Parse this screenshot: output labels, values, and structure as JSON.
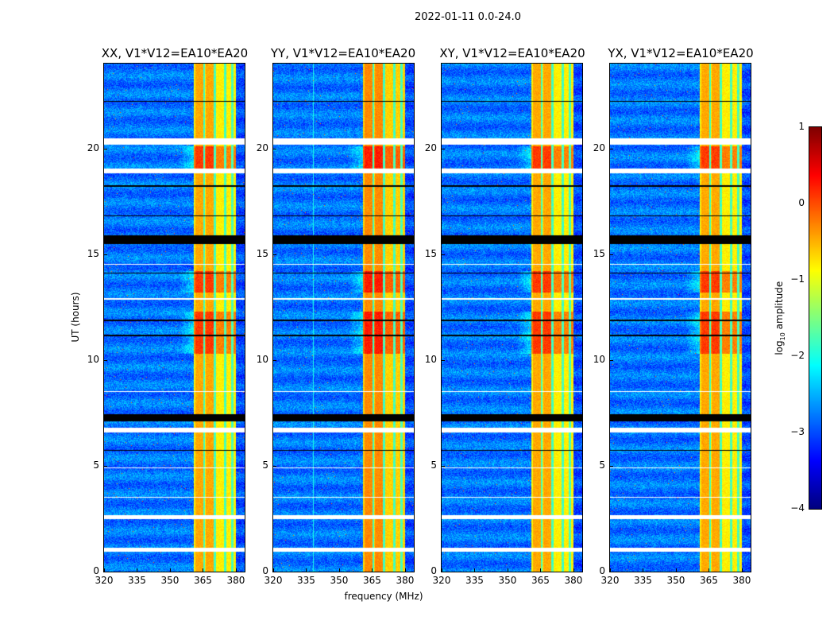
{
  "chart_data": {
    "type": "heatmap",
    "title": "2022-01-11 0.0-24.0",
    "xlabel": "frequency (MHz)",
    "ylabel": "UT (hours)",
    "xlim": [
      320,
      384
    ],
    "ylim": [
      0,
      24
    ],
    "xticks": [
      320,
      335,
      350,
      365,
      380
    ],
    "yticks": [
      0,
      5,
      10,
      15,
      20
    ],
    "panels": [
      {
        "title": "XX, V1*V12=EA10*EA20"
      },
      {
        "title": "YY, V1*V12=EA10*EA20"
      },
      {
        "title": "XY, V1*V12=EA10*EA20"
      },
      {
        "title": "YX, V1*V12=EA10*EA20"
      }
    ],
    "colormap": "jet",
    "colorbar": {
      "label": "log",
      "label_sub": "10",
      "label_tail": " amplitude",
      "range": [
        -4,
        1
      ],
      "ticks": [
        1,
        0,
        -1,
        -2,
        -3,
        -4
      ]
    },
    "features": {
      "band_mhz": [
        360.5,
        380
      ],
      "band_level": -0.8,
      "background_level": -2.8,
      "band_gap_lines_mhz": [
        365.3,
        370.3,
        375,
        378.3
      ],
      "bright_ut_ranges": [
        [
          10.3,
          12.3
        ],
        [
          19.0,
          20.1
        ],
        [
          13.2,
          14.2
        ]
      ],
      "flagged_ut_ranges": [
        [
          20.2,
          20.5
        ],
        [
          18.85,
          19.05
        ],
        [
          6.6,
          6.8
        ],
        [
          2.5,
          2.7
        ],
        [
          0.95,
          1.15
        ],
        [
          12.85,
          12.95
        ],
        [
          3.5,
          3.55
        ],
        [
          4.9,
          4.95
        ],
        [
          8.5,
          8.55
        ],
        [
          14.5,
          14.55
        ]
      ],
      "dropout_ut_ranges": [
        [
          15.5,
          15.9
        ],
        [
          7.1,
          7.45
        ],
        [
          11.85,
          11.92
        ],
        [
          11.15,
          11.22
        ],
        [
          16.8,
          16.86
        ],
        [
          18.2,
          18.26
        ],
        [
          5.72,
          5.78
        ],
        [
          22.2,
          22.25
        ],
        [
          14.1,
          14.15
        ]
      ]
    }
  }
}
